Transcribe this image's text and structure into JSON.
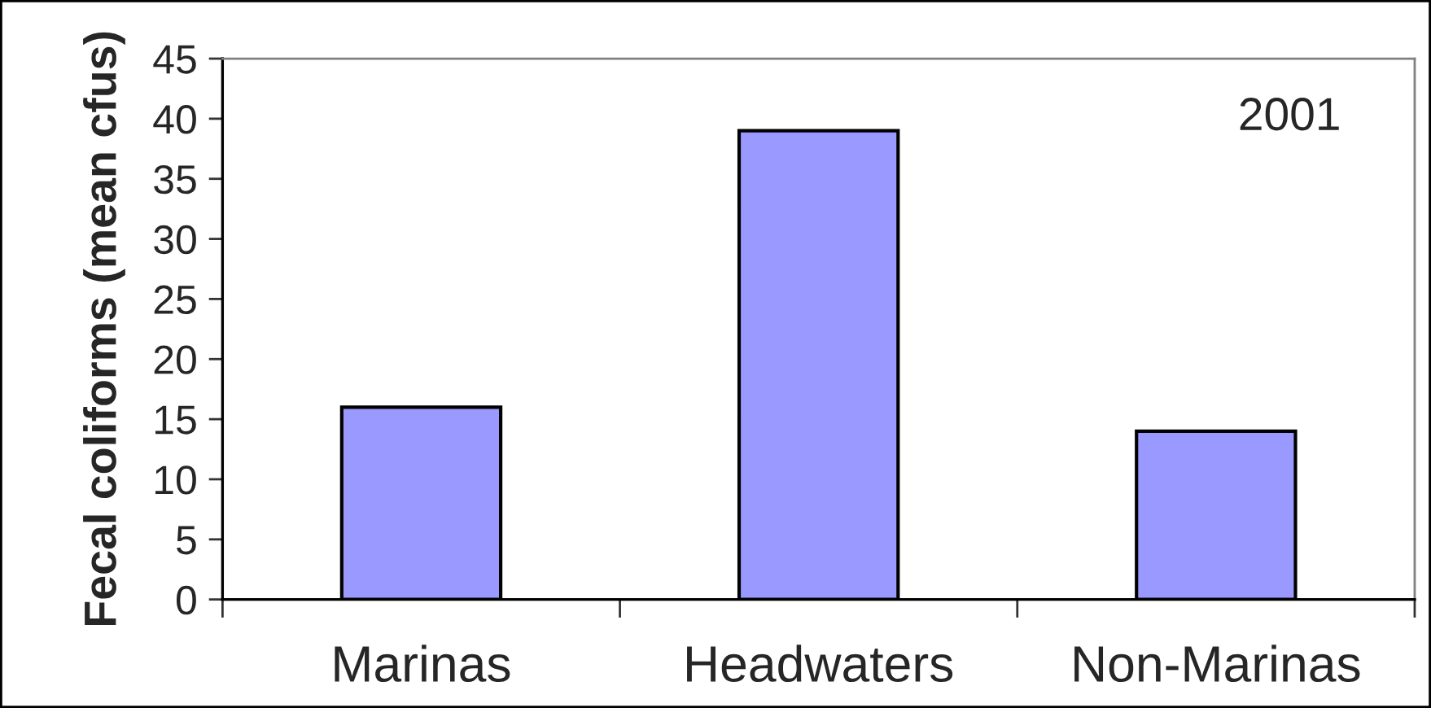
{
  "chart_data": {
    "type": "bar",
    "ylabel": "Fecal coliforms (mean cfus)",
    "categories": [
      "Marinas",
      "Headwaters",
      "Non-Marinas"
    ],
    "values": [
      16,
      39,
      14
    ],
    "color": "#9999ff",
    "ylim": [
      0,
      45
    ],
    "yticks": [
      0,
      5,
      10,
      15,
      20,
      25,
      30,
      35,
      40,
      45
    ],
    "annotations": [
      "2001"
    ]
  }
}
